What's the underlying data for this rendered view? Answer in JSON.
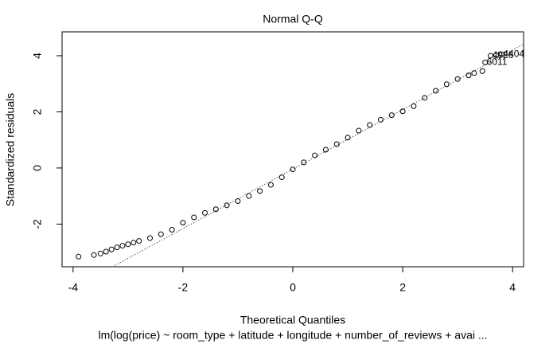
{
  "chart_data": {
    "type": "scatter",
    "title": "Normal Q-Q",
    "xlabel": "Theoretical Quantiles",
    "ylabel": "Standardized residuals",
    "subtitle": "lm(log(price) ~ room_type + latitude + longitude + number_of_reviews + avai ...",
    "x": [
      -3.9,
      -3.62,
      -3.5,
      -3.4,
      -3.3,
      -3.2,
      -3.1,
      -3.0,
      -2.9,
      -2.8,
      -2.6,
      -2.4,
      -2.2,
      -2.0,
      -1.8,
      -1.6,
      -1.4,
      -1.2,
      -1.0,
      -0.8,
      -0.6,
      -0.4,
      -0.2,
      0,
      0.2,
      0.4,
      0.6,
      0.8,
      1.0,
      1.2,
      1.4,
      1.6,
      1.8,
      2.0,
      2.2,
      2.4,
      2.6,
      2.8,
      3.0,
      3.2,
      3.3,
      3.45,
      3.5,
      3.6,
      3.7,
      3.8
    ],
    "y": [
      -3.16,
      -3.1,
      -3.05,
      -2.98,
      -2.9,
      -2.83,
      -2.77,
      -2.72,
      -2.66,
      -2.6,
      -2.5,
      -2.36,
      -2.2,
      -1.95,
      -1.76,
      -1.6,
      -1.47,
      -1.33,
      -1.18,
      -1.0,
      -0.82,
      -0.6,
      -0.33,
      -0.05,
      0.2,
      0.45,
      0.65,
      0.85,
      1.08,
      1.33,
      1.53,
      1.72,
      1.88,
      2.02,
      2.2,
      2.5,
      2.75,
      2.98,
      3.17,
      3.3,
      3.38,
      3.45,
      3.76,
      4.0,
      4.02,
      4.05
    ],
    "annotations": [
      {
        "text": "4926",
        "x": 3.6,
        "y": 4.0
      },
      {
        "text": "4404",
        "x": 3.8,
        "y": 4.05
      },
      {
        "text": "6011",
        "x": 3.5,
        "y": 3.76
      }
    ],
    "abline": {
      "intercept": -0.04,
      "slope": 1.06
    },
    "xlim": [
      -4.2,
      4.2
    ],
    "ylim": [
      -3.52,
      4.85
    ],
    "xticks": [
      -4,
      -2,
      0,
      2,
      4
    ],
    "yticks": [
      -2,
      0,
      2,
      4
    ]
  }
}
